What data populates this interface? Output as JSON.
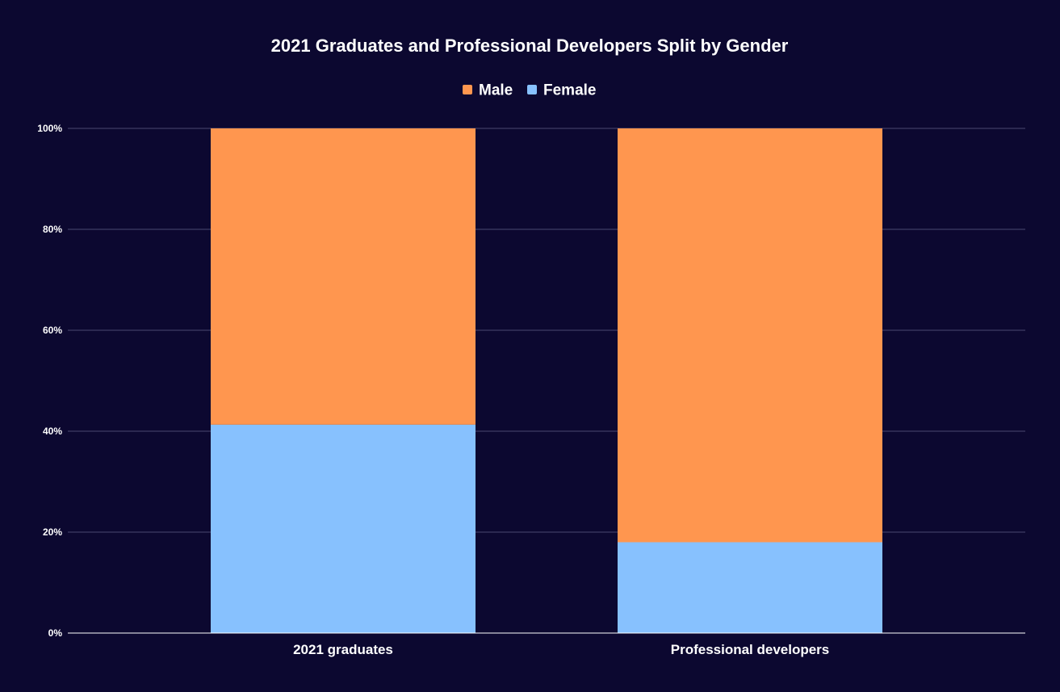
{
  "chart_data": {
    "type": "bar",
    "stacked": true,
    "title": "2021 Graduates and Professional Developers Split by Gender",
    "xlabel": "",
    "ylabel": "",
    "categories": [
      "2021 graduates",
      "Professional developers"
    ],
    "series": [
      {
        "name": "Female",
        "values": [
          41.3,
          18
        ],
        "color": "#87c1fe"
      },
      {
        "name": "Male",
        "values": [
          58.7,
          82
        ],
        "color": "#ff964f"
      }
    ],
    "legend_order": [
      "Male",
      "Female"
    ],
    "ylim": [
      0,
      100
    ],
    "yticks": [
      0,
      20,
      40,
      60,
      80,
      100
    ],
    "ytick_labels": [
      "0%",
      "20%",
      "40%",
      "60%",
      "80%",
      "100%"
    ],
    "grid": true,
    "legend_position": "top-center",
    "colors": {
      "background": "#0c0830",
      "gridline": "#4a4770",
      "axis": "#ffffff",
      "text": "#ffffff"
    }
  }
}
